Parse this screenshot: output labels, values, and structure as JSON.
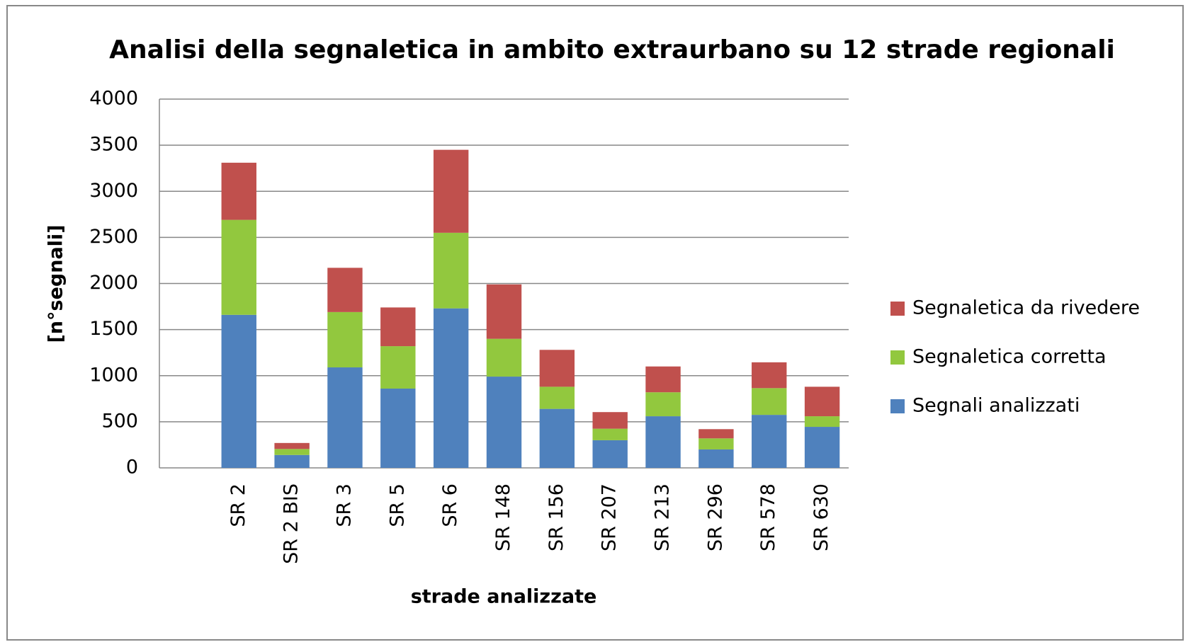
{
  "chart_data": {
    "type": "stacked_bar",
    "title": "Analisi della segnaletica in ambito extraurbano su 12 strade regionali",
    "x_label": "strade analizzate",
    "y_label": "[n°segnali]",
    "categories": [
      null,
      "SR 2",
      "SR 2 BIS",
      "SR 3",
      "SR 5",
      "SR 6",
      "SR 148",
      "SR 156",
      "SR 207",
      "SR 213",
      "SR 296",
      "SR 578",
      "SR 630"
    ],
    "series": [
      {
        "name": "Segnali analizzati",
        "color": "#4f81bd",
        "values": [
          null,
          1660,
          140,
          1090,
          860,
          1730,
          990,
          640,
          300,
          560,
          200,
          575,
          445
        ]
      },
      {
        "name": "Segnaletica corretta",
        "color": "#92c83e",
        "values": [
          null,
          1030,
          65,
          600,
          460,
          820,
          410,
          240,
          125,
          260,
          120,
          290,
          115
        ]
      },
      {
        "name": "Segnaletica da rivedere",
        "color": "#c0504d",
        "values": [
          null,
          620,
          65,
          480,
          420,
          900,
          590,
          400,
          180,
          280,
          100,
          280,
          320
        ]
      }
    ],
    "ylim": [
      0,
      4000
    ],
    "yticks": [
      0,
      500,
      1000,
      1500,
      2000,
      2500,
      3000,
      3500,
      4000
    ],
    "grid": true,
    "legend": "right"
  }
}
